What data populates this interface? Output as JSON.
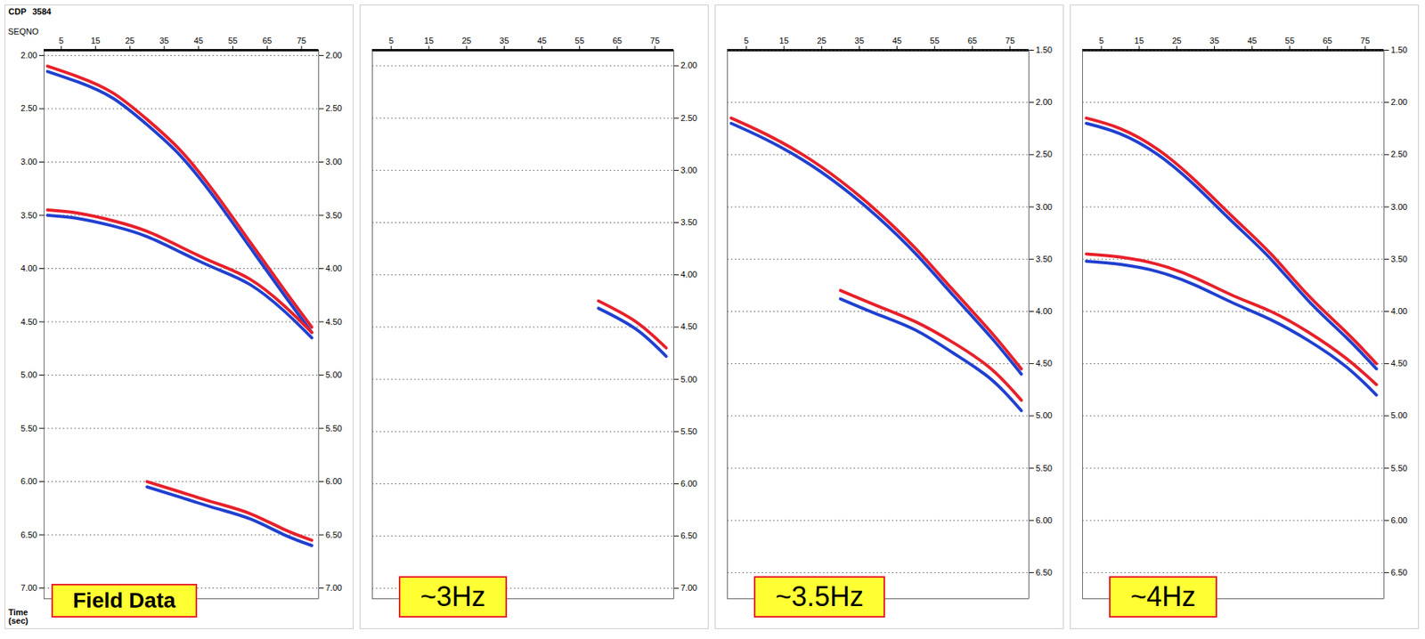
{
  "chart_data": [
    {
      "type": "line",
      "title": "Field Data",
      "annotations": [
        "CDP",
        "3584"
      ],
      "xlabel": "SEQNO",
      "ylabel": "Time (sec)",
      "x": [
        1,
        10,
        20,
        30,
        40,
        50,
        60,
        70,
        78
      ],
      "xlim": [
        0,
        80
      ],
      "xticks": [
        5,
        15,
        25,
        35,
        45,
        55,
        65,
        75
      ],
      "ylim": [
        1.95,
        7.1
      ],
      "yticks": [
        {
          "value": 2,
          "label": "2.00"
        },
        {
          "value": 2.5,
          "label": "2.50"
        },
        {
          "value": 3,
          "label": "3.00"
        },
        {
          "value": 3.5,
          "label": "3.50"
        },
        {
          "value": 4,
          "label": "4.00"
        },
        {
          "value": 4.5,
          "label": "4.50"
        },
        {
          "value": 5,
          "label": "5.00"
        },
        {
          "value": 5.5,
          "label": "5.50"
        },
        {
          "value": 6,
          "label": "6.00"
        },
        {
          "value": 6.5,
          "label": "6.50"
        },
        {
          "value": 7,
          "label": "7.00"
        }
      ],
      "series": [
        {
          "color": "#e8202a",
          "values": [
            2.1,
            2.2,
            2.35,
            2.6,
            2.9,
            3.3,
            3.75,
            4.2,
            4.55
          ]
        },
        {
          "color": "#2040d0",
          "values": [
            2.15,
            2.25,
            2.4,
            2.65,
            2.95,
            3.35,
            3.8,
            4.25,
            4.6
          ]
        },
        {
          "color": "#e8202a",
          "values": [
            3.45,
            3.48,
            3.55,
            3.65,
            3.8,
            3.95,
            4.1,
            4.35,
            4.6
          ]
        },
        {
          "color": "#2040d0",
          "values": [
            3.5,
            3.53,
            3.6,
            3.7,
            3.85,
            4.0,
            4.15,
            4.4,
            4.65
          ]
        },
        {
          "color": "#e8202a",
          "values": [
            null,
            null,
            null,
            6.0,
            6.1,
            6.2,
            6.3,
            6.45,
            6.55
          ]
        },
        {
          "color": "#2040d0",
          "values": [
            null,
            null,
            null,
            6.05,
            6.15,
            6.25,
            6.35,
            6.5,
            6.6
          ]
        }
      ]
    },
    {
      "type": "line",
      "title": "~3Hz",
      "x": [
        1,
        10,
        20,
        30,
        40,
        50,
        60,
        70,
        78
      ],
      "xlim": [
        0,
        80
      ],
      "xticks": [
        5,
        15,
        25,
        35,
        45,
        55,
        65,
        75
      ],
      "ylim": [
        1.85,
        7.1
      ],
      "yticks": [
        {
          "value": 2,
          "label": "2.00"
        },
        {
          "value": 2.5,
          "label": "2.50"
        },
        {
          "value": 3,
          "label": "3.00"
        },
        {
          "value": 3.5,
          "label": "3.50"
        },
        {
          "value": 4,
          "label": "4.00"
        },
        {
          "value": 4.5,
          "label": "4.50"
        },
        {
          "value": 5,
          "label": "5.00"
        },
        {
          "value": 5.5,
          "label": "5.50"
        },
        {
          "value": 6,
          "label": "6.00"
        },
        {
          "value": 6.5,
          "label": "6.50"
        },
        {
          "value": 7,
          "label": "7.00"
        }
      ],
      "series": [
        {
          "color": "#e8202a",
          "values": [
            null,
            null,
            null,
            null,
            null,
            null,
            4.25,
            4.45,
            4.7
          ]
        },
        {
          "color": "#2040d0",
          "values": [
            null,
            null,
            null,
            null,
            null,
            null,
            4.32,
            4.52,
            4.78
          ]
        }
      ]
    },
    {
      "type": "line",
      "title": "~3.5Hz",
      "x": [
        1,
        10,
        20,
        30,
        40,
        50,
        60,
        70,
        78
      ],
      "xlim": [
        0,
        80
      ],
      "xticks": [
        5,
        15,
        25,
        35,
        45,
        55,
        65,
        75
      ],
      "ylim": [
        1.5,
        6.75
      ],
      "yticks": [
        {
          "value": 1.5,
          "label": "1.50"
        },
        {
          "value": 2,
          "label": "2.00"
        },
        {
          "value": 2.5,
          "label": "2.50"
        },
        {
          "value": 3,
          "label": "3.00"
        },
        {
          "value": 3.5,
          "label": "3.50"
        },
        {
          "value": 4,
          "label": "4.00"
        },
        {
          "value": 4.5,
          "label": "4.50"
        },
        {
          "value": 5,
          "label": "5.00"
        },
        {
          "value": 5.5,
          "label": "5.50"
        },
        {
          "value": 6,
          "label": "6.00"
        },
        {
          "value": 6.5,
          "label": "6.50"
        }
      ],
      "series": [
        {
          "color": "#e8202a",
          "values": [
            2.15,
            2.3,
            2.5,
            2.75,
            3.05,
            3.4,
            3.8,
            4.2,
            4.55
          ]
        },
        {
          "color": "#2040d0",
          "values": [
            2.2,
            2.35,
            2.55,
            2.8,
            3.1,
            3.45,
            3.85,
            4.25,
            4.6
          ]
        },
        {
          "color": "#e8202a",
          "values": [
            null,
            null,
            null,
            3.8,
            3.95,
            4.1,
            4.3,
            4.55,
            4.85
          ]
        },
        {
          "color": "#2040d0",
          "values": [
            null,
            null,
            null,
            3.88,
            4.03,
            4.18,
            4.4,
            4.65,
            4.95
          ]
        }
      ]
    },
    {
      "type": "line",
      "title": "~4Hz",
      "x": [
        1,
        10,
        20,
        30,
        40,
        50,
        60,
        70,
        78
      ],
      "xlim": [
        0,
        80
      ],
      "xticks": [
        5,
        15,
        25,
        35,
        45,
        55,
        65,
        75
      ],
      "ylim": [
        1.5,
        6.75
      ],
      "yticks": [
        {
          "value": 1.5,
          "label": "1.50"
        },
        {
          "value": 2,
          "label": "2.00"
        },
        {
          "value": 2.5,
          "label": "2.50"
        },
        {
          "value": 3,
          "label": "3.00"
        },
        {
          "value": 3.5,
          "label": "3.50"
        },
        {
          "value": 4,
          "label": "4.00"
        },
        {
          "value": 4.5,
          "label": "4.50"
        },
        {
          "value": 5,
          "label": "5.00"
        },
        {
          "value": 5.5,
          "label": "5.50"
        },
        {
          "value": 6,
          "label": "6.00"
        },
        {
          "value": 6.5,
          "label": "6.50"
        }
      ],
      "series": [
        {
          "color": "#e8202a",
          "values": [
            2.15,
            2.25,
            2.45,
            2.75,
            3.1,
            3.45,
            3.85,
            4.2,
            4.5
          ]
        },
        {
          "color": "#2040d0",
          "values": [
            2.2,
            2.3,
            2.5,
            2.8,
            3.15,
            3.5,
            3.9,
            4.25,
            4.55
          ]
        },
        {
          "color": "#e8202a",
          "values": [
            3.45,
            3.48,
            3.55,
            3.68,
            3.85,
            4.0,
            4.2,
            4.45,
            4.7
          ]
        },
        {
          "color": "#2040d0",
          "values": [
            3.52,
            3.55,
            3.62,
            3.75,
            3.92,
            4.08,
            4.28,
            4.53,
            4.8
          ]
        }
      ]
    }
  ]
}
